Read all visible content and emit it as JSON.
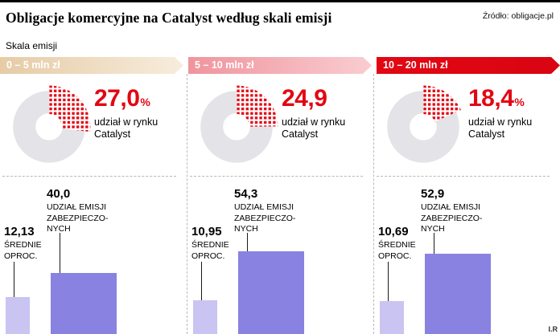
{
  "header": {
    "title": "Obligacje komercyjne na Catalyst według skali emisji",
    "source": "Źródło: obligacje.pl",
    "axis_label": "Skala emisji",
    "credit": "I.R"
  },
  "columns": [
    {
      "banner": "0 – 5 mln zł",
      "share_value": "27,0",
      "share_pct": "%",
      "share_label": "udział w rynku\nCatalyst",
      "secured_value": "40,0",
      "secured_label": "UDZIAŁ EMISJI\nZABEZPIECZO-\nNYCH",
      "rate_value": "12,13",
      "rate_label": "ŚREDNIE\nOPROC."
    },
    {
      "banner": "5 – 10 mln zł",
      "share_value": "24,9",
      "share_pct": "",
      "share_label": "udział w rynku\nCatalyst",
      "secured_value": "54,3",
      "secured_label": "UDZIAŁ EMISJI\nZABEZPIECZO-\nNYCH",
      "rate_value": "10,95",
      "rate_label": "ŚREDNIE\nOPROC."
    },
    {
      "banner": "10 – 20 mln zł",
      "share_value": "18,4",
      "share_pct": "%",
      "share_label": "udział w rynku\nCatalyst",
      "secured_value": "52,9",
      "secured_label": "UDZIAŁ EMISJI\nZABEZPIECZO-\nNYCH",
      "rate_value": "10,69",
      "rate_label": "ŚREDNIE\nOPROC."
    }
  ],
  "colors": {
    "accent_red": "#e30613",
    "banner_beige_from": "#e6cba6",
    "banner_beige_to": "#f7eddd",
    "banner_pink_from": "#f0949d",
    "banner_pink_to": "#f9cdd1",
    "banner_red_from": "#e30613",
    "banner_red_to": "#d90512",
    "bar_light": "#c9c4f1",
    "bar_dark": "#8a82e1",
    "donut_gray": "#e4e3e8"
  },
  "chart_data": {
    "type": "bar",
    "title": "Obligacje komercyjne na Catalyst według skali emisji",
    "source": "obligacje.pl",
    "categories": [
      "0 – 5 mln zł",
      "5 – 10 mln zł",
      "10 – 20 mln zł"
    ],
    "groups": [
      {
        "category": "0 – 5 mln zł",
        "market_share_pct": 27.0,
        "srednie_oproc_pct": 12.13,
        "udzial_emisji_zabezpieczonych_pct": 40.0
      },
      {
        "category": "5 – 10 mln zł",
        "market_share_pct": 24.9,
        "srednie_oproc_pct": 10.95,
        "udzial_emisji_zabezpieczonych_pct": 54.3
      },
      {
        "category": "10 – 20 mln zł",
        "market_share_pct": 18.4,
        "srednie_oproc_pct": 10.69,
        "udzial_emisji_zabezpieczonych_pct": 52.9
      }
    ],
    "series": [
      {
        "name": "udział w rynku Catalyst (%)",
        "values": [
          27.0,
          24.9,
          18.4
        ]
      },
      {
        "name": "ŚREDNIE OPROC. (%)",
        "values": [
          12.13,
          10.95,
          10.69
        ]
      },
      {
        "name": "UDZIAŁ EMISJI ZABEZPIECZONYCH (%)",
        "values": [
          40.0,
          54.3,
          52.9
        ]
      }
    ],
    "legend_position": "none",
    "grid": false
  }
}
